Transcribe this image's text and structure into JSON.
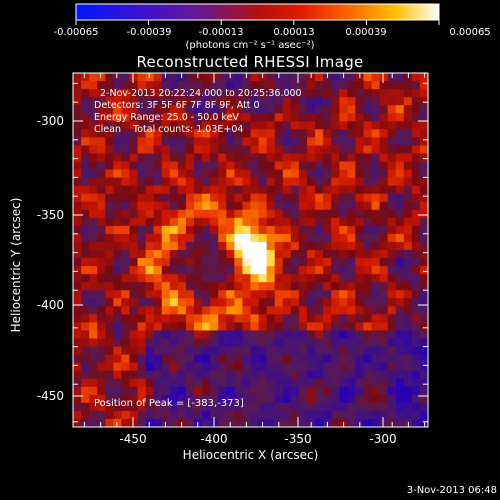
{
  "colorbar": {
    "ticks": [
      "-0.00065",
      "-0.00039",
      "-0.00013",
      "0.00013",
      "0.00039",
      "0.00065"
    ],
    "units": "(photons cm⁻² s⁻¹ asec⁻²)"
  },
  "chart_data": {
    "type": "heatmap",
    "title": "Reconstructed RHESSI Image",
    "xlabel": "Heliocentric X (arcsec)",
    "ylabel": "Heliocentric Y (arcsec)",
    "xlim": [
      -478,
      -288
    ],
    "ylim": [
      -467,
      -277
    ],
    "x_ticks": [
      "-450",
      "-400",
      "-350",
      "-300"
    ],
    "y_ticks": [
      "-300",
      "-350",
      "-400",
      "-450"
    ],
    "colormap": "red-temperature (blue → purple → red → orange → yellow → white)",
    "value_range": [
      -0.00065,
      0.00065
    ],
    "peak": {
      "x": -383,
      "y": -373
    },
    "annotations": [
      "2-Nov-2013 20:22:24.000 to 20:25:36.000",
      "Detectors: 3F 5F 6F 7F 8F 9F, Att 0",
      "Energy Range: 25.0 - 50.0 keV",
      "Clean    Total counts: 1.03E+04"
    ],
    "peak_label": "Position of Peak = [-383,-373]"
  },
  "footer": "3-Nov-2013 06:48"
}
